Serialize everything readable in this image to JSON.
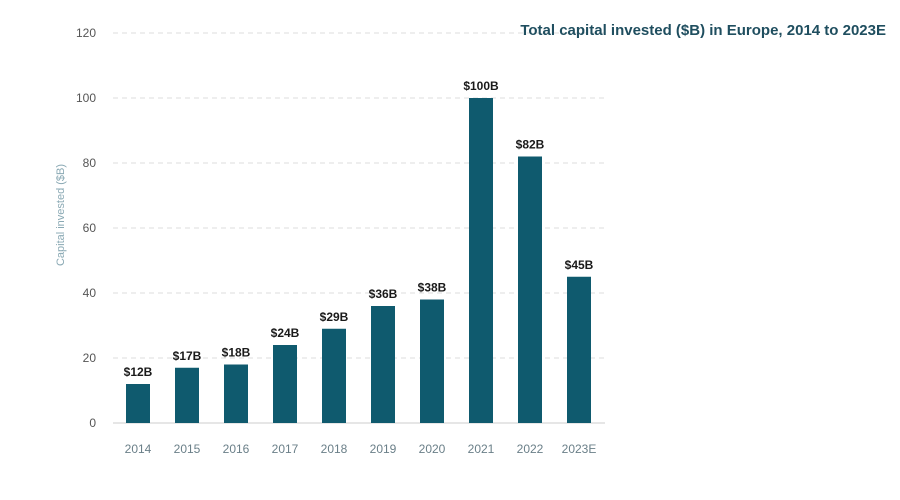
{
  "chart_data": {
    "type": "bar",
    "title": "Total capital invested ($B) in Europe, 2014 to 2023E",
    "xlabel": "",
    "ylabel": "Capital invested ($B)",
    "categories": [
      "2014",
      "2015",
      "2016",
      "2017",
      "2018",
      "2019",
      "2020",
      "2021",
      "2022",
      "2023E"
    ],
    "values": [
      12,
      17,
      18,
      24,
      29,
      36,
      38,
      100,
      82,
      45
    ],
    "data_labels": [
      "$12B",
      "$17B",
      "$18B",
      "$24B",
      "$29B",
      "$36B",
      "$38B",
      "$100B",
      "$82B",
      "$45B"
    ],
    "ylim": [
      0,
      120
    ],
    "yticks": [
      "0",
      "20",
      "40",
      "60",
      "80",
      "100",
      "120"
    ],
    "grid": true,
    "legend": "none",
    "colors": {
      "bar": "#0f5a6e",
      "grid": "#dddddd",
      "title": "#1f4e5f",
      "axis_label": "#8aa9b4"
    }
  }
}
